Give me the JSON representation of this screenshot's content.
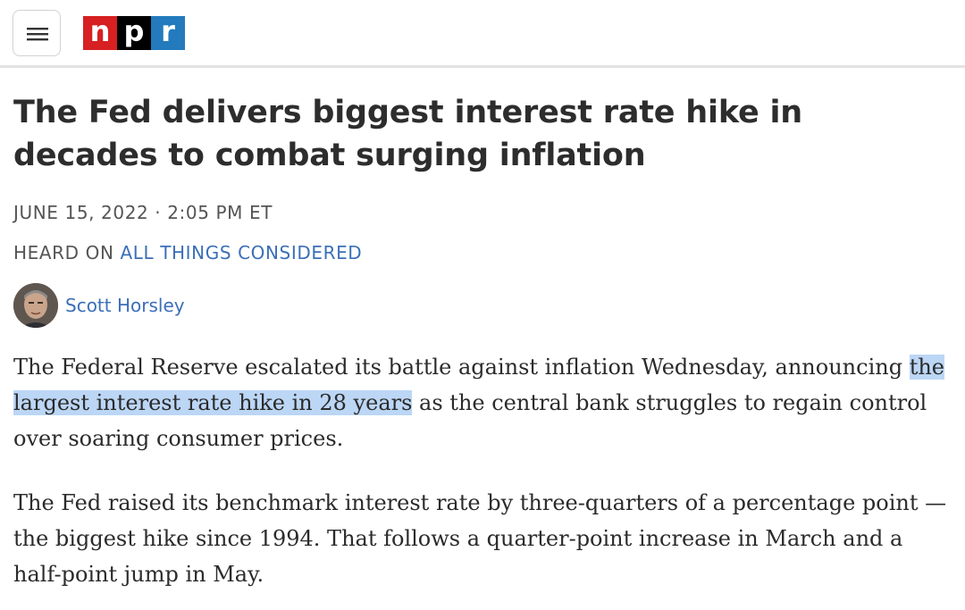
{
  "header": {
    "menu_icon": "hamburger-menu-icon",
    "logo": [
      "n",
      "p",
      "r"
    ],
    "logo_colors": [
      "#d62021",
      "#000000",
      "#237bbd"
    ]
  },
  "article": {
    "title": "The Fed delivers biggest interest rate hike in decades to combat surging inflation",
    "dateline": "JUNE 15, 2022 · 2:05 PM ET",
    "heard_prefix": "HEARD ON ",
    "heard_program": "ALL THINGS CONSIDERED",
    "author": "Scott Horsley",
    "paragraphs": [
      {
        "before": "The Federal Reserve escalated its battle against inflation Wednesday, announcing ",
        "link": "the largest interest rate hike in 28 years",
        "after": " as the central bank struggles to regain control over soaring consumer prices."
      },
      {
        "text": "The Fed raised its benchmark interest rate by three-quarters of a percentage point — the biggest hike since 1994. That follows a quarter-point increase in March and a half-point jump in May."
      }
    ]
  },
  "colors": {
    "link": "#3b6fb8",
    "highlight": "#bcd6f5"
  }
}
